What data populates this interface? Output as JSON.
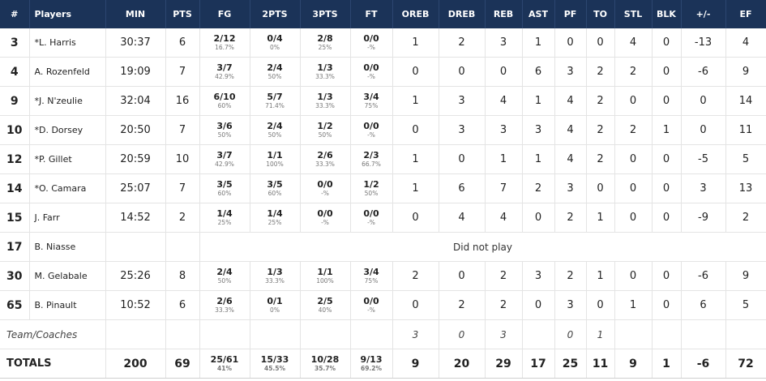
{
  "headers": [
    "#",
    "Players",
    "MIN",
    "PTS",
    "FG",
    "2PTS",
    "3PTS",
    "FT",
    "OREB",
    "DREB",
    "REB",
    "AST",
    "PF",
    "TO",
    "STL",
    "BLK",
    "+/-",
    "EF"
  ],
  "players": [
    {
      "num": "3",
      "name": "*L. Harris",
      "min": "30:37",
      "pts": "6",
      "fg": "2/12",
      "fg_pct": "16.7%",
      "p2": "0/4",
      "p2_pct": "0%",
      "p3": "2/8",
      "p3_pct": "25%",
      "ft": "0/0",
      "ft_pct": "-%",
      "oreb": "1",
      "dreb": "2",
      "reb": "3",
      "ast": "1",
      "pf": "0",
      "to": "0",
      "stl": "4",
      "blk": "0",
      "pm": "-13",
      "ef": "4"
    },
    {
      "num": "4",
      "name": "A. Rozenfeld",
      "min": "19:09",
      "pts": "7",
      "fg": "3/7",
      "fg_pct": "42.9%",
      "p2": "2/4",
      "p2_pct": "50%",
      "p3": "1/3",
      "p3_pct": "33.3%",
      "ft": "0/0",
      "ft_pct": "-%",
      "oreb": "0",
      "dreb": "0",
      "reb": "0",
      "ast": "6",
      "pf": "3",
      "to": "2",
      "stl": "2",
      "blk": "0",
      "pm": "-6",
      "ef": "9"
    },
    {
      "num": "9",
      "name": "*J. N'zeulie",
      "min": "32:04",
      "pts": "16",
      "fg": "6/10",
      "fg_pct": "60%",
      "p2": "5/7",
      "p2_pct": "71.4%",
      "p3": "1/3",
      "p3_pct": "33.3%",
      "ft": "3/4",
      "ft_pct": "75%",
      "oreb": "1",
      "dreb": "3",
      "reb": "4",
      "ast": "1",
      "pf": "4",
      "to": "2",
      "stl": "0",
      "blk": "0",
      "pm": "0",
      "ef": "14"
    },
    {
      "num": "10",
      "name": "*D. Dorsey",
      "min": "20:50",
      "pts": "7",
      "fg": "3/6",
      "fg_pct": "50%",
      "p2": "2/4",
      "p2_pct": "50%",
      "p3": "1/2",
      "p3_pct": "50%",
      "ft": "0/0",
      "ft_pct": "-%",
      "oreb": "0",
      "dreb": "3",
      "reb": "3",
      "ast": "3",
      "pf": "4",
      "to": "2",
      "stl": "2",
      "blk": "1",
      "pm": "0",
      "ef": "11"
    },
    {
      "num": "12",
      "name": "*P. Gillet",
      "min": "20:59",
      "pts": "10",
      "fg": "3/7",
      "fg_pct": "42.9%",
      "p2": "1/1",
      "p2_pct": "100%",
      "p3": "2/6",
      "p3_pct": "33.3%",
      "ft": "2/3",
      "ft_pct": "66.7%",
      "oreb": "1",
      "dreb": "0",
      "reb": "1",
      "ast": "1",
      "pf": "4",
      "to": "2",
      "stl": "0",
      "blk": "0",
      "pm": "-5",
      "ef": "5"
    },
    {
      "num": "14",
      "name": "*O. Camara",
      "min": "25:07",
      "pts": "7",
      "fg": "3/5",
      "fg_pct": "60%",
      "p2": "3/5",
      "p2_pct": "60%",
      "p3": "0/0",
      "p3_pct": "-%",
      "ft": "1/2",
      "ft_pct": "50%",
      "oreb": "1",
      "dreb": "6",
      "reb": "7",
      "ast": "2",
      "pf": "3",
      "to": "0",
      "stl": "0",
      "blk": "0",
      "pm": "3",
      "ef": "13"
    },
    {
      "num": "15",
      "name": "J. Farr",
      "min": "14:52",
      "pts": "2",
      "fg": "1/4",
      "fg_pct": "25%",
      "p2": "1/4",
      "p2_pct": "25%",
      "p3": "0/0",
      "p3_pct": "-%",
      "ft": "0/0",
      "ft_pct": "-%",
      "oreb": "0",
      "dreb": "4",
      "reb": "4",
      "ast": "0",
      "pf": "2",
      "to": "1",
      "stl": "0",
      "blk": "0",
      "pm": "-9",
      "ef": "2"
    },
    {
      "num": "17",
      "name": "B. Niasse",
      "dnp": "Did not play"
    },
    {
      "num": "30",
      "name": "M. Gelabale",
      "min": "25:26",
      "pts": "8",
      "fg": "2/4",
      "fg_pct": "50%",
      "p2": "1/3",
      "p2_pct": "33.3%",
      "p3": "1/1",
      "p3_pct": "100%",
      "ft": "3/4",
      "ft_pct": "75%",
      "oreb": "2",
      "dreb": "0",
      "reb": "2",
      "ast": "3",
      "pf": "2",
      "to": "1",
      "stl": "0",
      "blk": "0",
      "pm": "-6",
      "ef": "9"
    },
    {
      "num": "65",
      "name": "B. Pinault",
      "min": "10:52",
      "pts": "6",
      "fg": "2/6",
      "fg_pct": "33.3%",
      "p2": "0/1",
      "p2_pct": "0%",
      "p3": "2/5",
      "p3_pct": "40%",
      "ft": "0/0",
      "ft_pct": "-%",
      "oreb": "0",
      "dreb": "2",
      "reb": "2",
      "ast": "0",
      "pf": "3",
      "to": "0",
      "stl": "1",
      "blk": "0",
      "pm": "6",
      "ef": "5"
    }
  ],
  "team": {
    "label": "Team/Coaches",
    "oreb": "3",
    "dreb": "0",
    "reb": "3",
    "pf": "0",
    "to": "1"
  },
  "totals": {
    "label": "TOTALS",
    "min": "200",
    "pts": "69",
    "fg": "25/61",
    "fg_pct": "41%",
    "p2": "15/33",
    "p2_pct": "45.5%",
    "p3": "10/28",
    "p3_pct": "35.7%",
    "ft": "9/13",
    "ft_pct": "69.2%",
    "oreb": "9",
    "dreb": "20",
    "reb": "29",
    "ast": "17",
    "pf": "25",
    "to": "11",
    "stl": "9",
    "blk": "1",
    "pm": "-6",
    "ef": "72"
  }
}
